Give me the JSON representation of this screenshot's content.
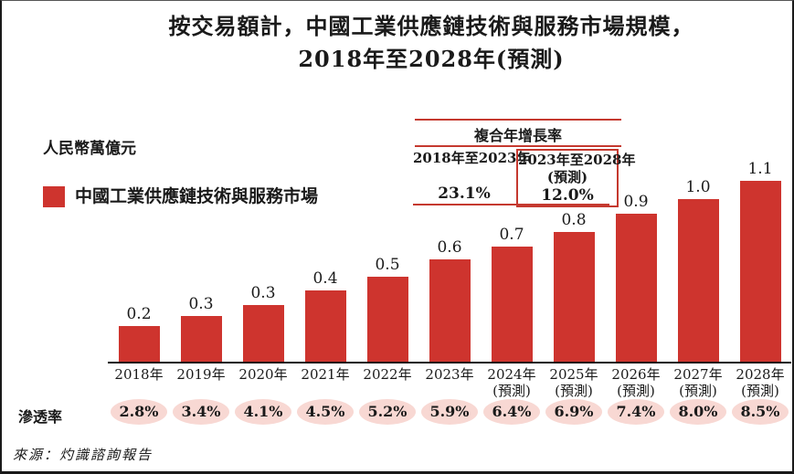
{
  "title": {
    "line1": "按交易額計，中國工業供應鏈技術與服務市場規模，",
    "line2": "2018年至2028年(預測)"
  },
  "y_axis_unit": "人民幣萬億元",
  "legend": {
    "swatch_color": "#ce342e",
    "label": "中國工業供應鏈技術與服務市場"
  },
  "cagr": {
    "header": "複合年增長率",
    "columns": [
      {
        "period": "2018年至2023年",
        "note": "",
        "value": "23.1%"
      },
      {
        "period": "2023年至2028年",
        "note": "(預測)",
        "value": "12.0%"
      }
    ]
  },
  "penetration_label": "滲透率",
  "source": "來源：灼識諮詢報告",
  "chart_data": {
    "type": "bar",
    "title": "按交易額計，中國工業供應鏈技術與服務市場規模，2018年至2028年(預測)",
    "ylabel": "人民幣萬億元",
    "xlabel": "",
    "grid": false,
    "legend_position": "upper-left",
    "ylim": [
      0,
      1.2
    ],
    "bar_color": "#ce342e",
    "ellipse_color": "#f8d8d3",
    "categories": [
      {
        "year": "2018年",
        "note": ""
      },
      {
        "year": "2019年",
        "note": ""
      },
      {
        "year": "2020年",
        "note": ""
      },
      {
        "year": "2021年",
        "note": ""
      },
      {
        "year": "2022年",
        "note": ""
      },
      {
        "year": "2023年",
        "note": ""
      },
      {
        "year": "2024年",
        "note": "(預測)"
      },
      {
        "year": "2025年",
        "note": "(預測)"
      },
      {
        "year": "2026年",
        "note": "(預測)"
      },
      {
        "year": "2027年",
        "note": "(預測)"
      },
      {
        "year": "2028年",
        "note": "(預測)"
      }
    ],
    "series": [
      {
        "name": "中國工業供應鏈技術與服務市場",
        "values": [
          0.2,
          0.3,
          0.3,
          0.4,
          0.5,
          0.6,
          0.7,
          0.8,
          0.9,
          1.0,
          1.1
        ]
      }
    ],
    "values_precise": [
      0.22,
      0.28,
      0.35,
      0.44,
      0.52,
      0.63,
      0.71,
      0.8,
      0.91,
      1.0,
      1.11
    ],
    "penetration_rates": [
      "2.8%",
      "3.4%",
      "4.1%",
      "4.5%",
      "5.2%",
      "5.9%",
      "6.4%",
      "6.9%",
      "7.4%",
      "8.0%",
      "8.5%"
    ],
    "cagr": [
      {
        "period": "2018年至2023年",
        "value": "23.1%"
      },
      {
        "period": "2023年至2028年(預測)",
        "value": "12.0%"
      }
    ]
  }
}
